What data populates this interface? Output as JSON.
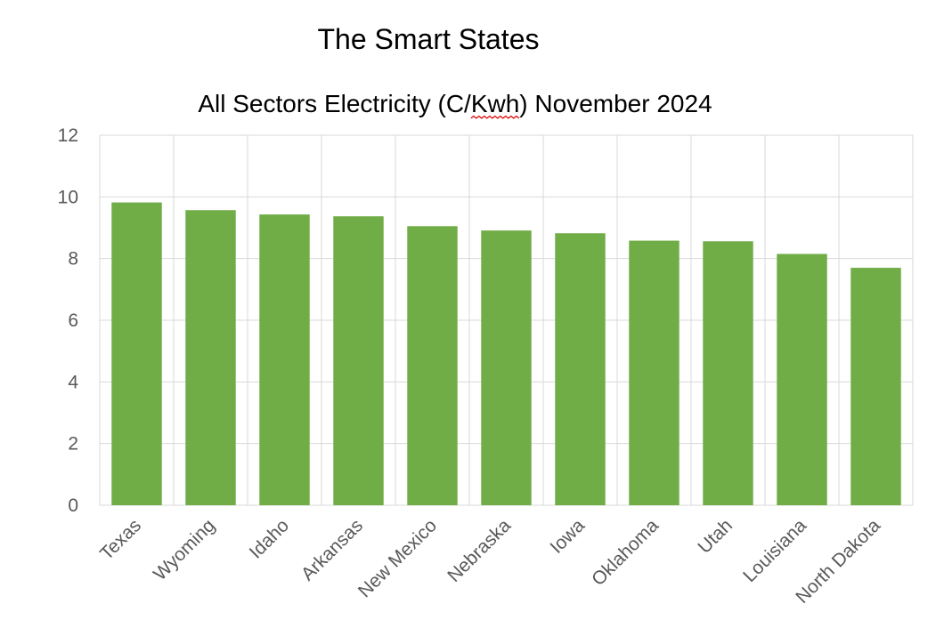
{
  "chart_data": {
    "type": "bar",
    "title": "The Smart States",
    "subtitle": "All Sectors Electricity (C/Kwh) November 2024",
    "xlabel": "",
    "ylabel": "",
    "categories": [
      "Texas",
      "Wyoming",
      "Idaho",
      "Arkansas",
      "New Mexico",
      "Nebraska",
      "Iowa",
      "Oklahoma",
      "Utah",
      "Louisiana",
      "North Dakota"
    ],
    "values": [
      9.82,
      9.57,
      9.43,
      9.37,
      9.05,
      8.91,
      8.82,
      8.58,
      8.56,
      8.15,
      7.7
    ],
    "ylim": [
      0,
      12
    ],
    "yticks": [
      0,
      2,
      4,
      6,
      8,
      10,
      12
    ],
    "ytick_labels": [
      "0",
      "2",
      "4",
      "6",
      "8",
      "10",
      "12"
    ],
    "grid": true,
    "legend": "none",
    "bar_color": "#70ad47",
    "gridline_color": "#d9d9d9",
    "tick_color": "#595959"
  }
}
